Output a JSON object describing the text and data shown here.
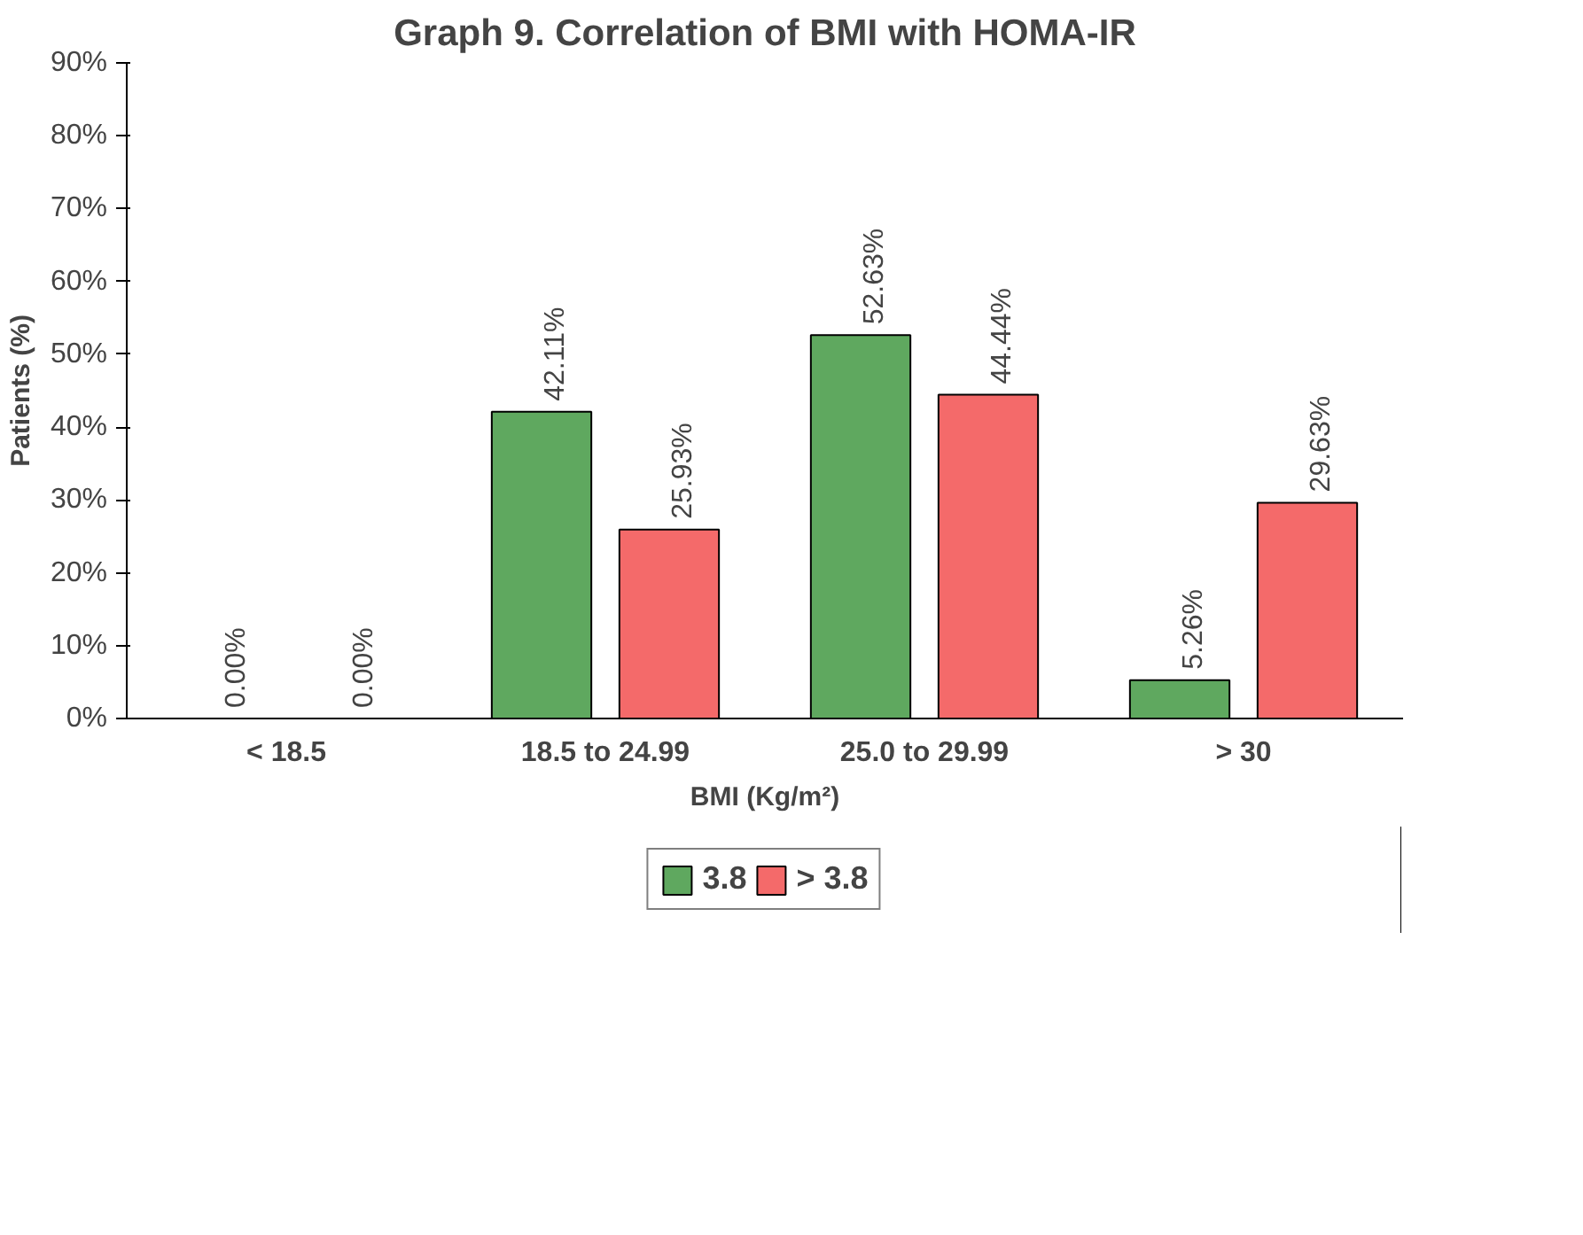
{
  "chart_data": {
    "type": "bar",
    "title": "Graph 9. Correlation of BMI with HOMA-IR",
    "xlabel": "BMI (Kg/m²)",
    "ylabel": "Patients (%)",
    "categories": [
      "< 18.5",
      "18.5 to 24.99",
      "25.0 to 29.99",
      "> 30"
    ],
    "series": [
      {
        "name": "3.8",
        "color": "#5fa85f",
        "values": [
          0.0,
          42.11,
          52.63,
          5.26
        ],
        "value_labels": [
          "0.00%",
          "42.11%",
          "52.63%",
          "5.26%"
        ]
      },
      {
        "name": "> 3.8",
        "color": "#f46a6a",
        "values": [
          0.0,
          25.93,
          44.44,
          29.63
        ],
        "value_labels": [
          "0.00%",
          "25.93%",
          "44.44%",
          "29.63%"
        ]
      }
    ],
    "ylim": [
      0,
      90
    ],
    "yticks": [
      {
        "value": 0,
        "label": "0%"
      },
      {
        "value": 10,
        "label": "10%"
      },
      {
        "value": 20,
        "label": "20%"
      },
      {
        "value": 30,
        "label": "30%"
      },
      {
        "value": 40,
        "label": "40%"
      },
      {
        "value": 50,
        "label": "50%"
      },
      {
        "value": 60,
        "label": "60%"
      },
      {
        "value": 70,
        "label": "70%"
      },
      {
        "value": 80,
        "label": "80%"
      },
      {
        "value": 90,
        "label": "90%"
      }
    ],
    "grid": false,
    "legend": "bottom"
  }
}
